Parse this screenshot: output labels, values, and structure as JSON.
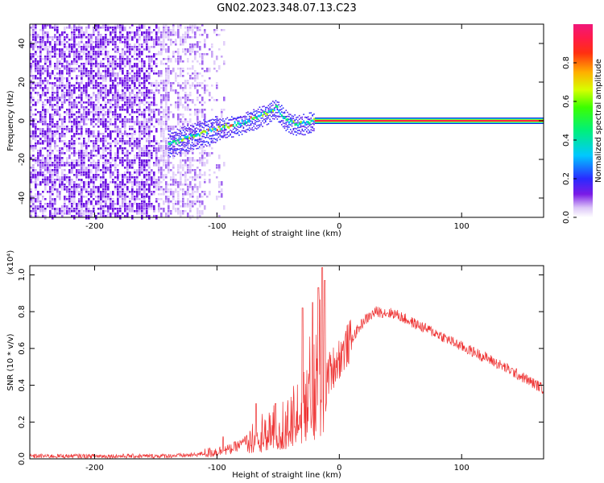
{
  "title": "GN02.2023.348.07.13.C23",
  "chart_data": [
    {
      "type": "heatmap",
      "xlabel": "Height of straight line (km)",
      "ylabel": "Frequency (Hz)",
      "xlim": [
        -253,
        167
      ],
      "ylim": [
        -50,
        50
      ],
      "xticks": [
        -200,
        -100,
        0,
        100
      ],
      "yticks": [
        -40,
        -20,
        0,
        20,
        40
      ],
      "colorbar": {
        "label": "Normalized spectral amplitude",
        "ticks": [
          "0.0",
          "0.2",
          "0.4",
          "0.6",
          "0.8"
        ],
        "tick_values": [
          0.0,
          0.2,
          0.4,
          0.6,
          0.8
        ],
        "range": [
          0,
          1
        ],
        "colormap": "rainbow (white-violet-blue-cyan-green-yellow-red-magenta)"
      },
      "features": {
        "noise_region_x": [
          -253,
          -100
        ],
        "signal_ridge_points": [
          [
            -140,
            -12
          ],
          [
            -120,
            -8
          ],
          [
            -100,
            -4
          ],
          [
            -80,
            -1
          ],
          [
            -60,
            4
          ],
          [
            -52,
            7
          ],
          [
            -45,
            1
          ],
          [
            -35,
            -2
          ],
          [
            -20,
            0
          ],
          [
            0,
            0
          ],
          [
            167,
            0
          ]
        ],
        "stable_band_x": [
          -20,
          167
        ],
        "stable_band_freq": 0
      }
    },
    {
      "type": "line",
      "xlabel": "Height of straight line (km)",
      "ylabel": "SNR (10 * v/v)",
      "y_multiplier": "(x10⁴)",
      "xlim": [
        -253,
        167
      ],
      "ylim": [
        0,
        1.05
      ],
      "xticks": [
        -200,
        -100,
        0,
        100
      ],
      "yticks": [
        0.0,
        0.2,
        0.4,
        0.6,
        0.8,
        1.0
      ],
      "ytick_labels": [
        "0.0",
        "0.2",
        "0.4",
        "0.6",
        "0.8",
        "1.0"
      ],
      "series": [
        {
          "color": "#ee3333",
          "envelope": [
            [
              -253,
              0.015
            ],
            [
              -150,
              0.015
            ],
            [
              -120,
              0.02
            ],
            [
              -100,
              0.04
            ],
            [
              -90,
              0.05
            ],
            [
              -80,
              0.08
            ],
            [
              -70,
              0.14
            ],
            [
              -60,
              0.18
            ],
            [
              -50,
              0.2
            ],
            [
              -40,
              0.25
            ],
            [
              -30,
              0.35
            ],
            [
              -20,
              0.5
            ],
            [
              -13,
              0.6
            ],
            [
              -10,
              0.45
            ],
            [
              -5,
              0.5
            ],
            [
              0,
              0.55
            ],
            [
              10,
              0.65
            ],
            [
              20,
              0.75
            ],
            [
              30,
              0.8
            ],
            [
              45,
              0.79
            ],
            [
              60,
              0.74
            ],
            [
              80,
              0.68
            ],
            [
              100,
              0.61
            ],
            [
              120,
              0.55
            ],
            [
              140,
              0.48
            ],
            [
              167,
              0.38
            ]
          ],
          "spikes": [
            [
              -95,
              0.12
            ],
            [
              -68,
              0.3
            ],
            [
              -52,
              0.3
            ],
            [
              -30,
              0.82
            ],
            [
              -22,
              0.85
            ],
            [
              -17,
              0.93
            ],
            [
              -14,
              1.04
            ],
            [
              -12,
              0.97
            ]
          ]
        }
      ]
    }
  ]
}
